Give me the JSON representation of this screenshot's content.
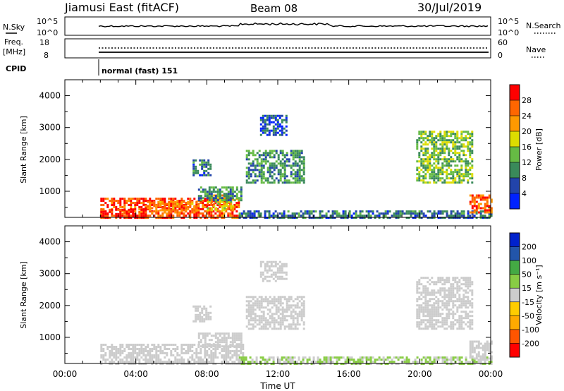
{
  "header": {
    "station": "Jiamusi East (fitACF)",
    "beam": "Beam 08",
    "date": "30/Jul/2019"
  },
  "top_panels": {
    "nsky_label": "N.Sky",
    "nsky_tick_hi": "10^5",
    "nsky_tick_lo": "10^0",
    "nsearch_label": "N.Search",
    "nsearch_tick_hi": "10^5",
    "nsearch_tick_lo": "10^0",
    "freq_label_1": "Freq.",
    "freq_label_2": "[MHz]",
    "freq_tick_hi": "18",
    "freq_tick_lo": "8",
    "nave_label": "Nave",
    "nave_tick_hi": "60",
    "nave_tick_lo": "0",
    "cpid_label": "CPID",
    "cpid_value": "normal (fast) 151"
  },
  "colors": {
    "noise_line": "#000000",
    "power_scale": [
      "#0022ff",
      "#2244aa",
      "#3a8a5a",
      "#66bb44",
      "#dddd00",
      "#ff9900",
      "#ff6600",
      "#ff0000"
    ],
    "velocity_scale": [
      "#ff0000",
      "#ff5500",
      "#ffaa00",
      "#ffcc00",
      "#cccccc",
      "#88cc44",
      "#44aa44",
      "#2255aa",
      "#0022cc"
    ]
  },
  "chart_data": [
    {
      "type": "heatmap",
      "panel": "power",
      "ylabel": "Slant Range [km]",
      "xlabel": "",
      "x_ticks": [],
      "y_ticks": [
        "1000",
        "2000",
        "3000",
        "4000"
      ],
      "xlim_hours": [
        0,
        24
      ],
      "ylim_km": [
        180,
        4500
      ],
      "colorbar_label": "Power [dB]",
      "colorbar_ticks": [
        "4",
        "8",
        "12",
        "16",
        "20",
        "24",
        "28"
      ],
      "colorbar_range": [
        0,
        32
      ],
      "echo_regions": [
        {
          "t0": 2.0,
          "t1": 9.8,
          "r0": 200,
          "r1": 800,
          "level": 28
        },
        {
          "t0": 2.0,
          "t1": 4.5,
          "r0": 200,
          "r1": 450,
          "level": 30
        },
        {
          "t0": 4.5,
          "t1": 7.5,
          "r0": 350,
          "r1": 700,
          "level": 24
        },
        {
          "t0": 8.0,
          "t1": 9.5,
          "r0": 400,
          "r1": 900,
          "level": 20
        },
        {
          "t0": 7.5,
          "t1": 10.0,
          "r0": 700,
          "r1": 1150,
          "level": 10
        },
        {
          "t0": 7.2,
          "t1": 8.2,
          "r0": 1500,
          "r1": 2000,
          "level": 8
        },
        {
          "t0": 10.2,
          "t1": 13.5,
          "r0": 1300,
          "r1": 2300,
          "level": 10
        },
        {
          "t0": 11.0,
          "t1": 12.5,
          "r0": 2800,
          "r1": 3400,
          "level": 6
        },
        {
          "t0": 9.8,
          "t1": 24.0,
          "r0": 200,
          "r1": 400,
          "level": 8
        },
        {
          "t0": 19.8,
          "t1": 23.0,
          "r0": 1300,
          "r1": 2900,
          "level": 14
        },
        {
          "t0": 22.8,
          "t1": 24.0,
          "r0": 350,
          "r1": 900,
          "level": 26
        }
      ]
    },
    {
      "type": "heatmap",
      "panel": "velocity",
      "ylabel": "Slant Range [km]",
      "xlabel": "Time UT",
      "x_ticks": [
        "00:00",
        "04:00",
        "08:00",
        "12:00",
        "16:00",
        "20:00",
        "00:00"
      ],
      "y_ticks": [
        "1000",
        "2000",
        "3000",
        "4000"
      ],
      "xlim_hours": [
        0,
        24
      ],
      "ylim_km": [
        180,
        4500
      ],
      "colorbar_label": "Velocity [m s⁻¹]",
      "colorbar_ticks": [
        "200",
        "100",
        "50",
        "15",
        "-15",
        "-50",
        "-100",
        "-200"
      ],
      "colorbar_range": [
        -250,
        250
      ],
      "echo_regions": [
        {
          "t0": 2.0,
          "t1": 10.0,
          "r0": 200,
          "r1": 800,
          "level": 0
        },
        {
          "t0": 7.5,
          "t1": 10.0,
          "r0": 700,
          "r1": 1150,
          "level": 0
        },
        {
          "t0": 7.2,
          "t1": 8.2,
          "r0": 1500,
          "r1": 2000,
          "level": 0
        },
        {
          "t0": 10.2,
          "t1": 13.5,
          "r0": 1300,
          "r1": 2300,
          "level": 0
        },
        {
          "t0": 11.0,
          "t1": 12.5,
          "r0": 2800,
          "r1": 3400,
          "level": 0
        },
        {
          "t0": 9.8,
          "t1": 24.0,
          "r0": 200,
          "r1": 400,
          "level": 30
        },
        {
          "t0": 19.8,
          "t1": 23.0,
          "r0": 1300,
          "r1": 2900,
          "level": 0
        },
        {
          "t0": 22.8,
          "t1": 24.0,
          "r0": 350,
          "r1": 900,
          "level": 0
        }
      ]
    }
  ]
}
